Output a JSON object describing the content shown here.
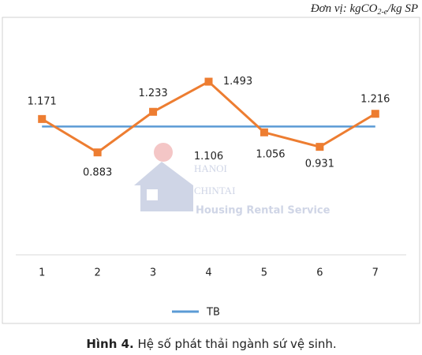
{
  "chart_data": {
    "type": "line",
    "unit": {
      "prefix": "Đơn vị: kgCO",
      "sub": "2-e",
      "suffix": "/kg SP"
    },
    "caption": {
      "label": "Hình 4.",
      "text": " Hệ số phát thải ngành sứ vệ sinh."
    },
    "watermark": {
      "line1": "HANOI",
      "line2": "CHINTAI",
      "tagline": "Housing Rental Service"
    },
    "categories": [
      "1",
      "2",
      "3",
      "4",
      "5",
      "6",
      "7"
    ],
    "ylim": [
      0,
      2
    ],
    "series": [
      {
        "color": "#ed7d31",
        "values": [
          1.171,
          0.883,
          1.233,
          1.493,
          1.056,
          0.931,
          1.216
        ]
      },
      {
        "name": "TB",
        "color": "#5b9bd5",
        "values": [
          1.106,
          1.106,
          1.106,
          1.106,
          1.106,
          1.106,
          1.106
        ]
      }
    ]
  }
}
